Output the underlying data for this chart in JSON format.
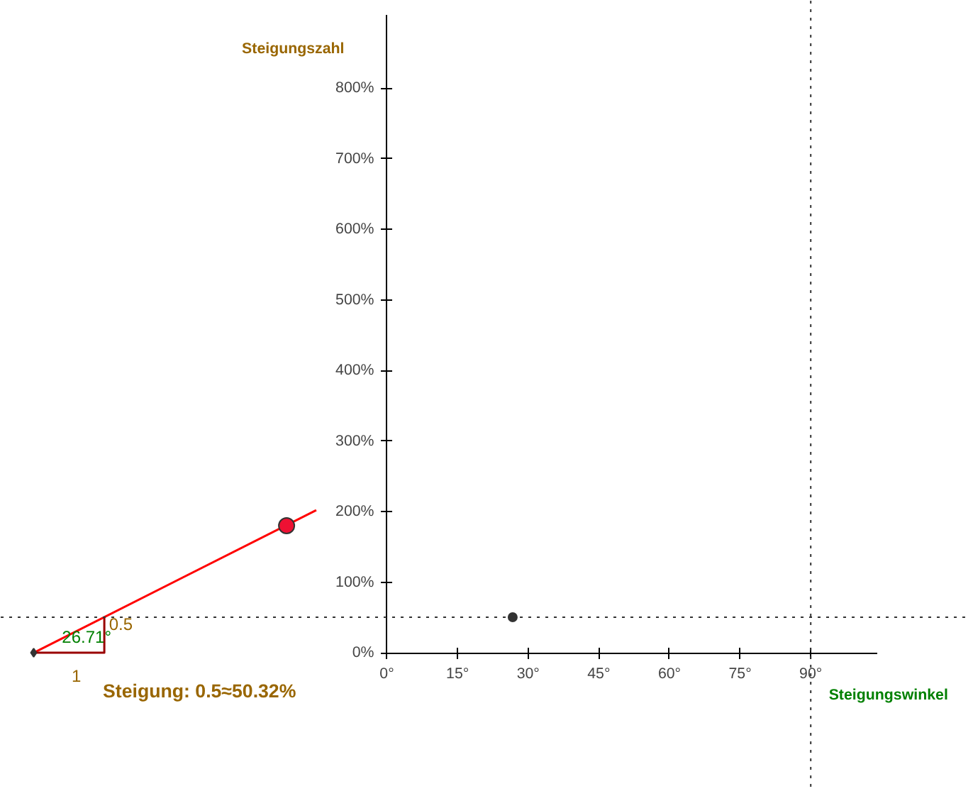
{
  "chart_data": {
    "type": "scatter",
    "xlabel": "Steigungswinkel",
    "ylabel": "Steigungszahl",
    "xlim": [
      -82,
      124
    ],
    "ylim": [
      -198,
      924
    ],
    "xticks": [
      {
        "value": 0,
        "label": "0°"
      },
      {
        "value": 15,
        "label": "15°"
      },
      {
        "value": 30,
        "label": "30°"
      },
      {
        "value": 45,
        "label": "45°"
      },
      {
        "value": 60,
        "label": "60°"
      },
      {
        "value": 75,
        "label": "75°"
      },
      {
        "value": 90,
        "label": "90°"
      }
    ],
    "yticks": [
      {
        "value": 0,
        "label": "0%"
      },
      {
        "value": 100,
        "label": "100%"
      },
      {
        "value": 200,
        "label": "200%"
      },
      {
        "value": 300,
        "label": "300%"
      },
      {
        "value": 400,
        "label": "400%"
      },
      {
        "value": 500,
        "label": "500%"
      },
      {
        "value": 600,
        "label": "600%"
      },
      {
        "value": 700,
        "label": "700%"
      },
      {
        "value": 800,
        "label": "800%"
      }
    ],
    "grid": false,
    "series": [
      {
        "marker": "circle",
        "color": "#333333",
        "x": [
          26.71
        ],
        "values": [
          50.32
        ]
      },
      {
        "type": "line",
        "color": "#ff0000",
        "x": [
          -75,
          -15
        ],
        "values": [
          0,
          202
        ]
      },
      {
        "type": "line",
        "color": "#990000",
        "x": [
          -75,
          -60,
          -60
        ],
        "values": [
          0,
          0,
          50
        ]
      },
      {
        "type": "scatter",
        "marker": "diamond",
        "color": "#333333",
        "x": [
          -75
        ],
        "values": [
          0
        ]
      },
      {
        "type": "scatter",
        "marker": "circle",
        "color": "#ee1133",
        "x": [
          -21.3
        ],
        "values": [
          180
        ]
      }
    ],
    "ref_lines": [
      {
        "axis": "y",
        "value": 50.32,
        "line_style": "dotted",
        "color": "#333333"
      },
      {
        "axis": "x",
        "value": 90,
        "line_style": "dotted",
        "color": "#333333"
      }
    ],
    "annotations": [
      {
        "text": "26.71°",
        "x": -69,
        "y": 8
      },
      {
        "text": "0.5",
        "x": -59,
        "y": 32
      },
      "1",
      "Steigung: 0.5≈50.32%"
    ]
  }
}
